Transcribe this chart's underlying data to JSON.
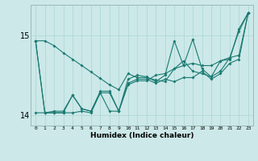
{
  "title": "",
  "xlabel": "Humidex (Indice chaleur)",
  "background_color": "#cce8e8",
  "grid_color": "#aad4d4",
  "line_color": "#1a7a72",
  "xlim": [
    -0.5,
    23.5
  ],
  "ylim": [
    13.87,
    15.38
  ],
  "yticks": [
    14.0,
    15.0
  ],
  "xticks": [
    0,
    1,
    2,
    3,
    4,
    5,
    6,
    7,
    8,
    9,
    10,
    11,
    12,
    13,
    14,
    15,
    16,
    17,
    18,
    19,
    20,
    21,
    22,
    23
  ],
  "line1": [
    14.93,
    14.93,
    14.87,
    14.78,
    14.7,
    14.62,
    14.54,
    14.46,
    14.38,
    14.32,
    14.52,
    14.47,
    14.47,
    14.44,
    14.42,
    14.58,
    14.68,
    14.55,
    14.52,
    14.48,
    14.55,
    14.72,
    15.05,
    15.28
  ],
  "line2": [
    14.03,
    14.03,
    14.05,
    14.05,
    14.25,
    14.08,
    14.05,
    14.28,
    14.28,
    14.05,
    14.38,
    14.43,
    14.43,
    14.5,
    14.52,
    14.58,
    14.62,
    14.65,
    14.62,
    14.62,
    14.68,
    14.72,
    14.75,
    15.28
  ],
  "line3": [
    14.93,
    14.03,
    14.03,
    14.03,
    14.25,
    14.08,
    14.05,
    14.3,
    14.3,
    14.05,
    14.45,
    14.5,
    14.48,
    14.42,
    14.5,
    14.93,
    14.62,
    14.95,
    14.58,
    14.48,
    14.68,
    14.7,
    15.08,
    15.28
  ],
  "line4": [
    14.93,
    14.03,
    14.03,
    14.03,
    14.03,
    14.05,
    14.03,
    14.28,
    14.05,
    14.05,
    14.4,
    14.45,
    14.45,
    14.4,
    14.45,
    14.42,
    14.47,
    14.47,
    14.55,
    14.45,
    14.52,
    14.65,
    14.7,
    15.28
  ]
}
